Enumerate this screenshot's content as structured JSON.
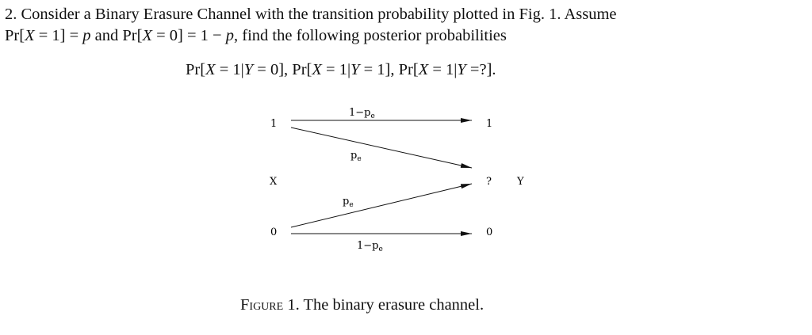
{
  "problem": {
    "line1": "2. Consider a Binary Erasure Channel with the transition probability plotted in Fig. 1. Assume",
    "line2_parts": [
      "Pr[",
      "X",
      " = 1] = ",
      "p",
      " and Pr[",
      "X",
      " = 0] = 1 − ",
      "p",
      ", find the following posterior probabilities"
    ],
    "line3_parts": [
      "Pr[",
      "X",
      " = 1|",
      "Y",
      " = 0], Pr[",
      "X",
      " = 1|",
      "Y",
      " = 1], Pr[",
      "X",
      " = 1|",
      "Y",
      " =?]."
    ]
  },
  "figure": {
    "input_label": "X",
    "output_label": "Y",
    "inputs": [
      "1",
      "0"
    ],
    "outputs": [
      "1",
      "?",
      "0"
    ],
    "edges": [
      {
        "from": "1",
        "to": "1",
        "label": "1−p",
        "sub": "e"
      },
      {
        "from": "1",
        "to": "?",
        "label": "p",
        "sub": "e"
      },
      {
        "from": "0",
        "to": "?",
        "label": "p",
        "sub": "e"
      },
      {
        "from": "0",
        "to": "0",
        "label": "1−p",
        "sub": "e"
      }
    ],
    "caption_prefix": "Figure",
    "caption_number": " 1.",
    "caption_text": " The binary erasure channel."
  }
}
